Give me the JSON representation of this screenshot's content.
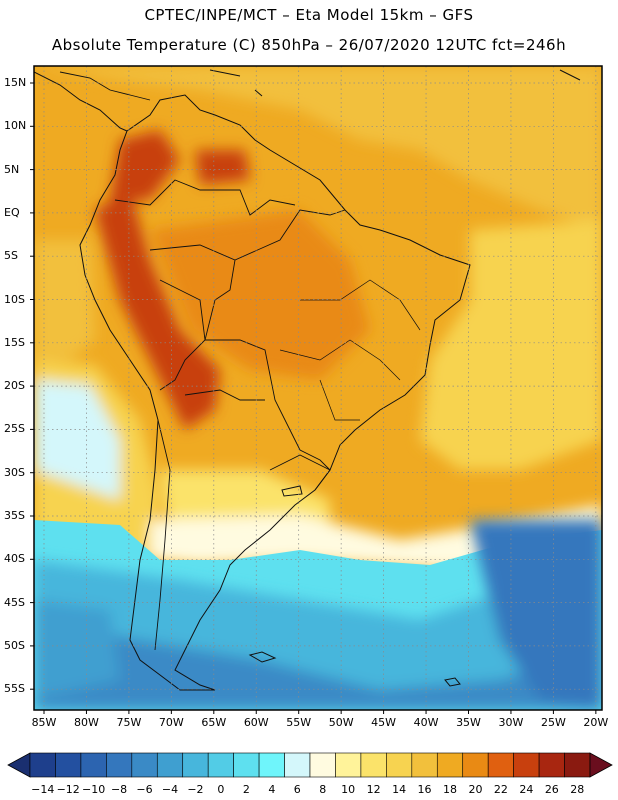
{
  "title_line1": "CPTEC/INPE/MCT –  Eta Model 15km – GFS",
  "title_line2": "Absolute Temperature (C) 850hPa – 26/07/2020 12UTC fct=246h",
  "lat_labels": [
    "15N",
    "10N",
    "5N",
    "EQ",
    "5S",
    "10S",
    "15S",
    "20S",
    "25S",
    "30S",
    "35S",
    "40S",
    "45S",
    "50S",
    "55S"
  ],
  "lon_labels": [
    "85W",
    "80W",
    "75W",
    "70W",
    "65W",
    "60W",
    "55W",
    "50W",
    "45W",
    "40W",
    "35W",
    "30W",
    "25W",
    "20W"
  ],
  "colorbar": {
    "labels": [
      "-14",
      "-12",
      "-10",
      "-8",
      "-6",
      "-4",
      "-2",
      "0",
      "2",
      "4",
      "6",
      "8",
      "10",
      "12",
      "14",
      "16",
      "18",
      "20",
      "22",
      "24",
      "26",
      "28"
    ],
    "colors": [
      "#1e3f8c",
      "#2350a0",
      "#2c64b0",
      "#3477bd",
      "#3a8ac6",
      "#3f9fd0",
      "#47b6dc",
      "#52cce6",
      "#5ee0ef",
      "#6ff5fb",
      "#d4f7fb",
      "#fffbe0",
      "#fff39a",
      "#fbe36a",
      "#f7d350",
      "#f2c03c",
      "#efaa22",
      "#e98a14",
      "#e06010",
      "#c8400e",
      "#a82610",
      "#8a1a10"
    ],
    "low_arrow": "#1a2f70",
    "high_arrow": "#6a0e1e"
  }
}
